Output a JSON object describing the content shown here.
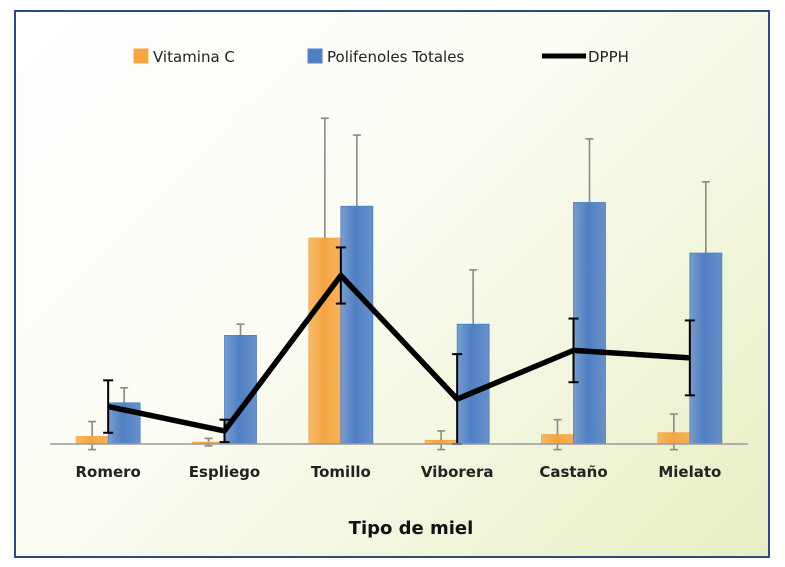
{
  "chart_data": {
    "type": "bar",
    "categories": [
      "Romero",
      "Espliego",
      "Tomillo",
      "Viborera",
      "Castaño",
      "Mielato"
    ],
    "series": [
      {
        "name": "Vitamina C",
        "kind": "bar",
        "color": "#f5a542",
        "values": [
          2,
          0.5,
          55,
          1,
          2.5,
          3
        ],
        "errors": [
          4,
          1,
          32,
          2.5,
          4,
          5
        ]
      },
      {
        "name": "Polifenoles Totales",
        "kind": "bar",
        "color": "#4f7fc4",
        "values": [
          11,
          29,
          63.5,
          32,
          64.5,
          51
        ],
        "errors": [
          4,
          3,
          19,
          14.5,
          17,
          19
        ]
      },
      {
        "name": "DPPH",
        "kind": "line",
        "color": "#000000",
        "values": [
          10,
          3.5,
          45,
          12,
          25,
          23
        ],
        "errors": [
          7,
          3,
          7.5,
          12,
          8.5,
          10
        ]
      }
    ],
    "xlabel": "Tipo de miel",
    "ylabel": "",
    "ylim": [
      0,
      90
    ],
    "grid": false,
    "legend_position": "top"
  }
}
